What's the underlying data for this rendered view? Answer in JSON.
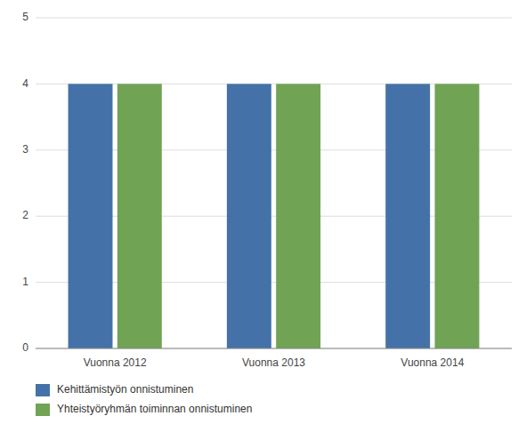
{
  "chart_data": {
    "type": "bar",
    "categories": [
      "Vuonna 2012",
      "Vuonna 2013",
      "Vuonna 2014"
    ],
    "series": [
      {
        "name": "Kehittämistyön onnistuminen",
        "color": "#4472a8",
        "values": [
          4,
          4,
          4
        ]
      },
      {
        "name": "Yhteistyöryhmän toiminnan onnistuminen",
        "color": "#70a354",
        "values": [
          4,
          4,
          4
        ]
      }
    ],
    "ylim": [
      0,
      5
    ],
    "yticks": [
      0,
      1,
      2,
      3,
      4,
      5
    ],
    "grid": true,
    "legend": "bottom"
  }
}
